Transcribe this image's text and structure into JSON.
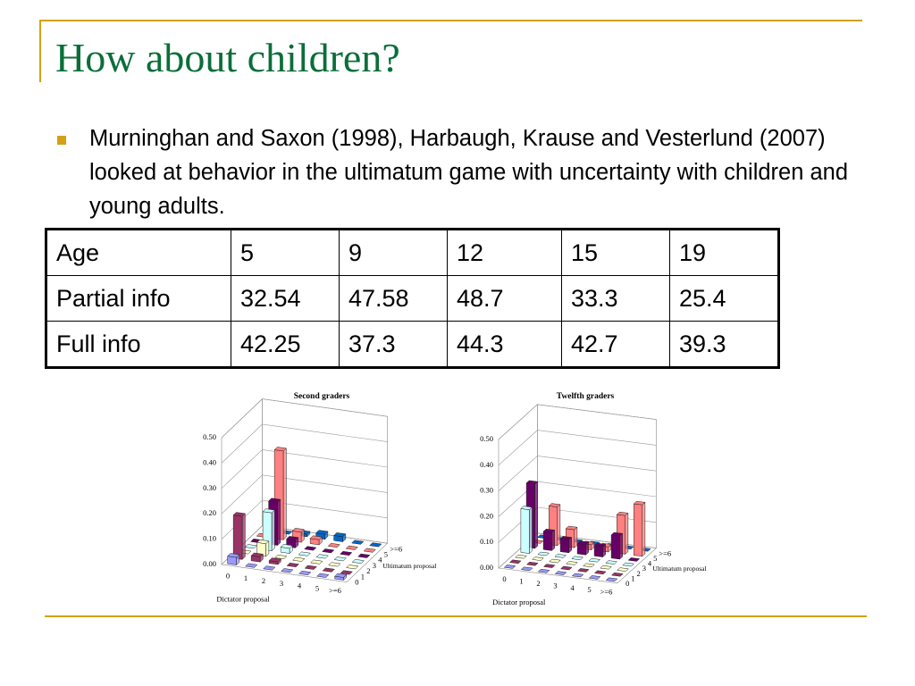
{
  "header": {
    "title": "How about children?"
  },
  "bullets": [
    "Murninghan and Saxon (1998), Harbaugh, Krause and Vesterlund (2007) looked at behavior in the ultimatum game with uncertainty with children and young adults."
  ],
  "table": {
    "rows": [
      [
        "Age",
        5,
        9,
        12,
        15,
        19
      ],
      [
        "Partial info",
        32.54,
        47.58,
        48.7,
        33.3,
        25.4
      ],
      [
        "Full info",
        42.25,
        37.3,
        44.3,
        42.7,
        39.3
      ]
    ]
  },
  "chart_data": [
    {
      "type": "bar3d",
      "title": "Second graders",
      "x_label": "Dictator proposal",
      "y_label": "Ultimatum proposal",
      "categories": [
        "0",
        "1",
        "2",
        "3",
        "4",
        "5",
        ">=6"
      ],
      "depth_categories": [
        "0",
        "1",
        "2",
        "3",
        "4",
        "5",
        ">=6"
      ],
      "zlim": [
        0,
        0.5
      ],
      "zticks": [
        {
          "value": 0,
          "label": "0.00"
        },
        {
          "value": 0.1,
          "label": "0.10"
        },
        {
          "value": 0.2,
          "label": "0.20"
        },
        {
          "value": 0.3,
          "label": "0.30"
        },
        {
          "value": 0.4,
          "label": "0.40"
        },
        {
          "value": 0.5,
          "label": "0.50"
        }
      ],
      "series": [
        {
          "color": "#9999ff",
          "values": [
            0.03,
            0,
            0,
            0,
            0,
            0,
            0.01
          ]
        },
        {
          "color": "#993366",
          "values": [
            0.17,
            0.02,
            0.01,
            0,
            0,
            0,
            0
          ]
        },
        {
          "color": "#ffffcc",
          "values": [
            0,
            0.05,
            0,
            0,
            0,
            0,
            0
          ]
        },
        {
          "color": "#ccffff",
          "values": [
            0,
            0.15,
            0.02,
            0,
            0,
            0,
            0
          ]
        },
        {
          "color": "#660066",
          "values": [
            0,
            0.17,
            0.03,
            0,
            0,
            0,
            0
          ]
        },
        {
          "color": "#ff8080",
          "values": [
            0,
            0.35,
            0.04,
            0.02,
            0,
            0,
            0
          ]
        },
        {
          "color": "#0066cc",
          "values": [
            0,
            0,
            0.01,
            0.02,
            0.02,
            0,
            0
          ]
        }
      ]
    },
    {
      "type": "bar3d",
      "title": "Twelfth graders",
      "x_label": "Dictator proposal",
      "y_label": "Ultimatum proposal",
      "categories": [
        "0",
        "1",
        "2",
        "3",
        "4",
        "5",
        ">=6"
      ],
      "depth_categories": [
        "0",
        "1",
        "2",
        "3",
        "4",
        "5",
        ">=6"
      ],
      "zlim": [
        0,
        0.5
      ],
      "zticks": [
        {
          "value": 0,
          "label": "0.00"
        },
        {
          "value": 0.1,
          "label": "0.10"
        },
        {
          "value": 0.2,
          "label": "0.20"
        },
        {
          "value": 0.3,
          "label": "0.30"
        },
        {
          "value": 0.4,
          "label": "0.40"
        },
        {
          "value": 0.5,
          "label": "0.50"
        }
      ],
      "series": [
        {
          "color": "#9999ff",
          "values": [
            0,
            0,
            0,
            0,
            0,
            0,
            0
          ]
        },
        {
          "color": "#993366",
          "values": [
            0,
            0,
            0,
            0,
            0,
            0,
            0
          ]
        },
        {
          "color": "#ffffcc",
          "values": [
            0,
            0,
            0,
            0,
            0,
            0,
            0
          ]
        },
        {
          "color": "#ccffff",
          "values": [
            0.17,
            0,
            0,
            0,
            0,
            0,
            0
          ]
        },
        {
          "color": "#660066",
          "values": [
            0.25,
            0.07,
            0.05,
            0.04,
            0.04,
            0.09,
            0
          ]
        },
        {
          "color": "#ff8080",
          "values": [
            0,
            0.15,
            0.07,
            0.02,
            0.02,
            0.15,
            0.2
          ]
        },
        {
          "color": "#0066cc",
          "values": [
            0,
            0,
            0,
            0,
            0,
            0,
            0
          ]
        }
      ]
    }
  ]
}
